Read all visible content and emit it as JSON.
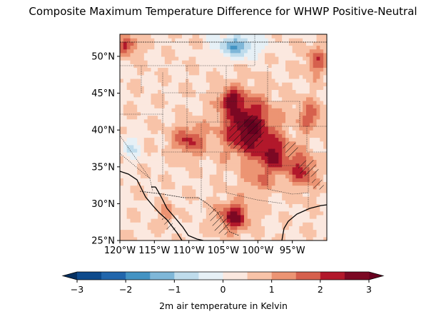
{
  "title": "Composite Maximum Temperature Difference for WHWP Positive-Neutral",
  "map": {
    "projection": "PlateCarree",
    "lon_range": [
      -120,
      -90
    ],
    "lat_range": [
      25,
      53
    ],
    "lat_ticks": [
      {
        "value": 50,
        "label": "50°N"
      },
      {
        "value": 45,
        "label": "45°N"
      },
      {
        "value": 40,
        "label": "40°N"
      },
      {
        "value": 35,
        "label": "35°N"
      },
      {
        "value": 30,
        "label": "30°N"
      },
      {
        "value": 25,
        "label": "25°N"
      }
    ],
    "lon_ticks": [
      {
        "value": -120,
        "label": "120°W"
      },
      {
        "value": -115,
        "label": "115°W"
      },
      {
        "value": -110,
        "label": "110°W"
      },
      {
        "value": -105,
        "label": "105°W"
      },
      {
        "value": -100,
        "label": "100°W"
      },
      {
        "value": -95,
        "label": "95°W"
      }
    ],
    "features": [
      "coastlines",
      "country-borders",
      "state-borders"
    ],
    "hatching": "significance stippling (diagonal hatch)"
  },
  "colorbar": {
    "label": "2m air temperature in Kelvin",
    "extend": "both",
    "colormap": "RdBu_r",
    "range": [
      -3,
      3
    ],
    "ticks": [
      {
        "value": -3,
        "label": "−3"
      },
      {
        "value": -2,
        "label": "−2"
      },
      {
        "value": -1,
        "label": "−1"
      },
      {
        "value": 0,
        "label": "0"
      },
      {
        "value": 1,
        "label": "1"
      },
      {
        "value": 2,
        "label": "2"
      },
      {
        "value": 3,
        "label": "3"
      }
    ],
    "levels": [
      {
        "from": -3.0,
        "to": -2.5,
        "color": "#0d4a8c"
      },
      {
        "from": -2.5,
        "to": -2.0,
        "color": "#2166ac"
      },
      {
        "from": -2.0,
        "to": -1.5,
        "color": "#4393c3"
      },
      {
        "from": -1.5,
        "to": -1.0,
        "color": "#7fb7d8"
      },
      {
        "from": -1.0,
        "to": -0.5,
        "color": "#bfdcec"
      },
      {
        "from": -0.5,
        "to": 0.0,
        "color": "#e6f0f6"
      },
      {
        "from": 0.0,
        "to": 0.5,
        "color": "#fbe8df"
      },
      {
        "from": 0.5,
        "to": 1.0,
        "color": "#f8c3a8"
      },
      {
        "from": 1.0,
        "to": 1.5,
        "color": "#ec9473"
      },
      {
        "from": 1.5,
        "to": 2.0,
        "color": "#d6604d"
      },
      {
        "from": 2.0,
        "to": 2.5,
        "color": "#b2182b"
      },
      {
        "from": 2.5,
        "to": 3.0,
        "color": "#7c0823"
      }
    ],
    "under_color": "#053061",
    "over_color": "#67001f"
  }
}
